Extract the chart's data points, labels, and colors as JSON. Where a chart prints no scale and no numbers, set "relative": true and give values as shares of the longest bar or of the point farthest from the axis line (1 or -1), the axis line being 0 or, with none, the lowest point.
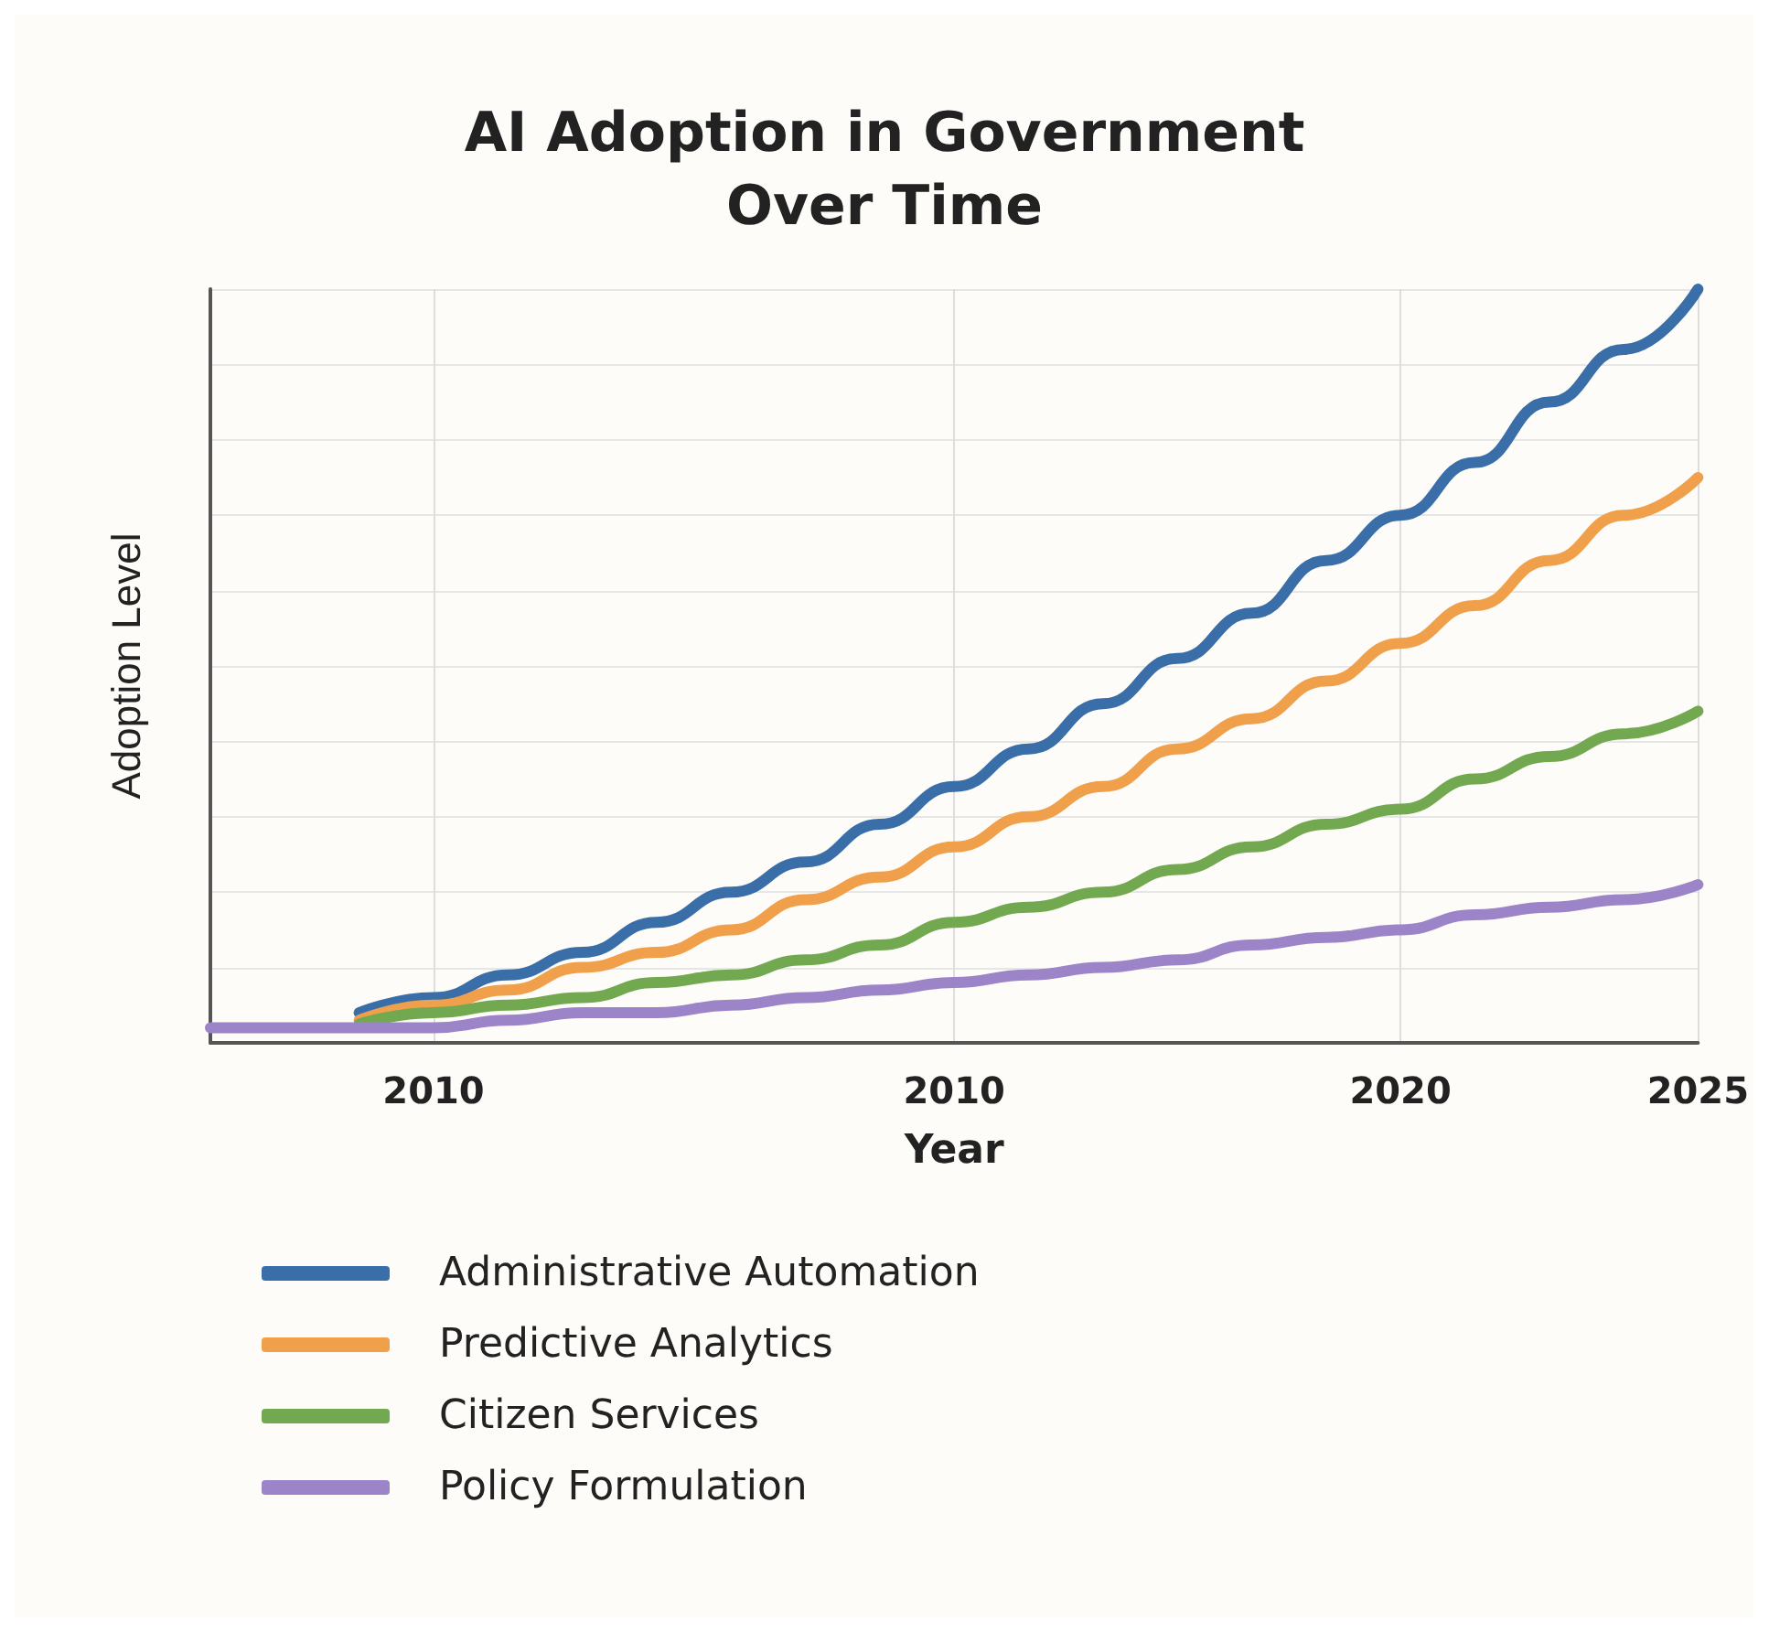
{
  "chart_data": {
    "type": "line",
    "title": "AI Adoption in Government\nOver Time",
    "xlabel": "Year",
    "ylabel": "Adoption Level",
    "relative": true,
    "grid": true,
    "legend": "bottom",
    "marker": "none",
    "line_style": "solid",
    "categories": [
      null,
      null,
      null,
      "2010",
      null,
      null,
      null,
      null,
      null,
      null,
      "2010",
      null,
      null,
      null,
      null,
      null,
      "2020",
      null,
      null,
      null,
      "2025"
    ],
    "series": [
      {
        "name": "Administrative Automation",
        "color": "#3a6ea8",
        "values": [
          null,
          null,
          0.04,
          0.06,
          0.09,
          0.12,
          0.16,
          0.2,
          0.24,
          0.29,
          0.34,
          0.39,
          0.45,
          0.51,
          0.57,
          0.64,
          0.7,
          0.77,
          0.85,
          0.92,
          1
        ]
      },
      {
        "name": "Predictive Analytics",
        "color": "#f0a04b",
        "values": [
          null,
          null,
          0.03,
          0.05,
          0.07,
          0.1,
          0.12,
          0.15,
          0.19,
          0.22,
          0.26,
          0.3,
          0.34,
          0.39,
          0.43,
          0.48,
          0.53,
          0.58,
          0.64,
          0.7,
          0.75
        ]
      },
      {
        "name": "Citizen Services",
        "color": "#72a950",
        "values": [
          null,
          null,
          0.025,
          0.04,
          0.05,
          0.06,
          0.08,
          0.09,
          0.11,
          0.13,
          0.16,
          0.18,
          0.2,
          0.23,
          0.26,
          0.29,
          0.31,
          0.35,
          0.38,
          0.41,
          0.44
        ]
      },
      {
        "name": "Policy Formulation",
        "color": "#9b84c8",
        "values": [
          0.02,
          0.02,
          0.02,
          0.02,
          0.03,
          0.04,
          0.04,
          0.05,
          0.06,
          0.07,
          0.08,
          0.09,
          0.1,
          0.11,
          0.13,
          0.14,
          0.15,
          0.17,
          0.18,
          0.19,
          0.21
        ]
      }
    ]
  }
}
